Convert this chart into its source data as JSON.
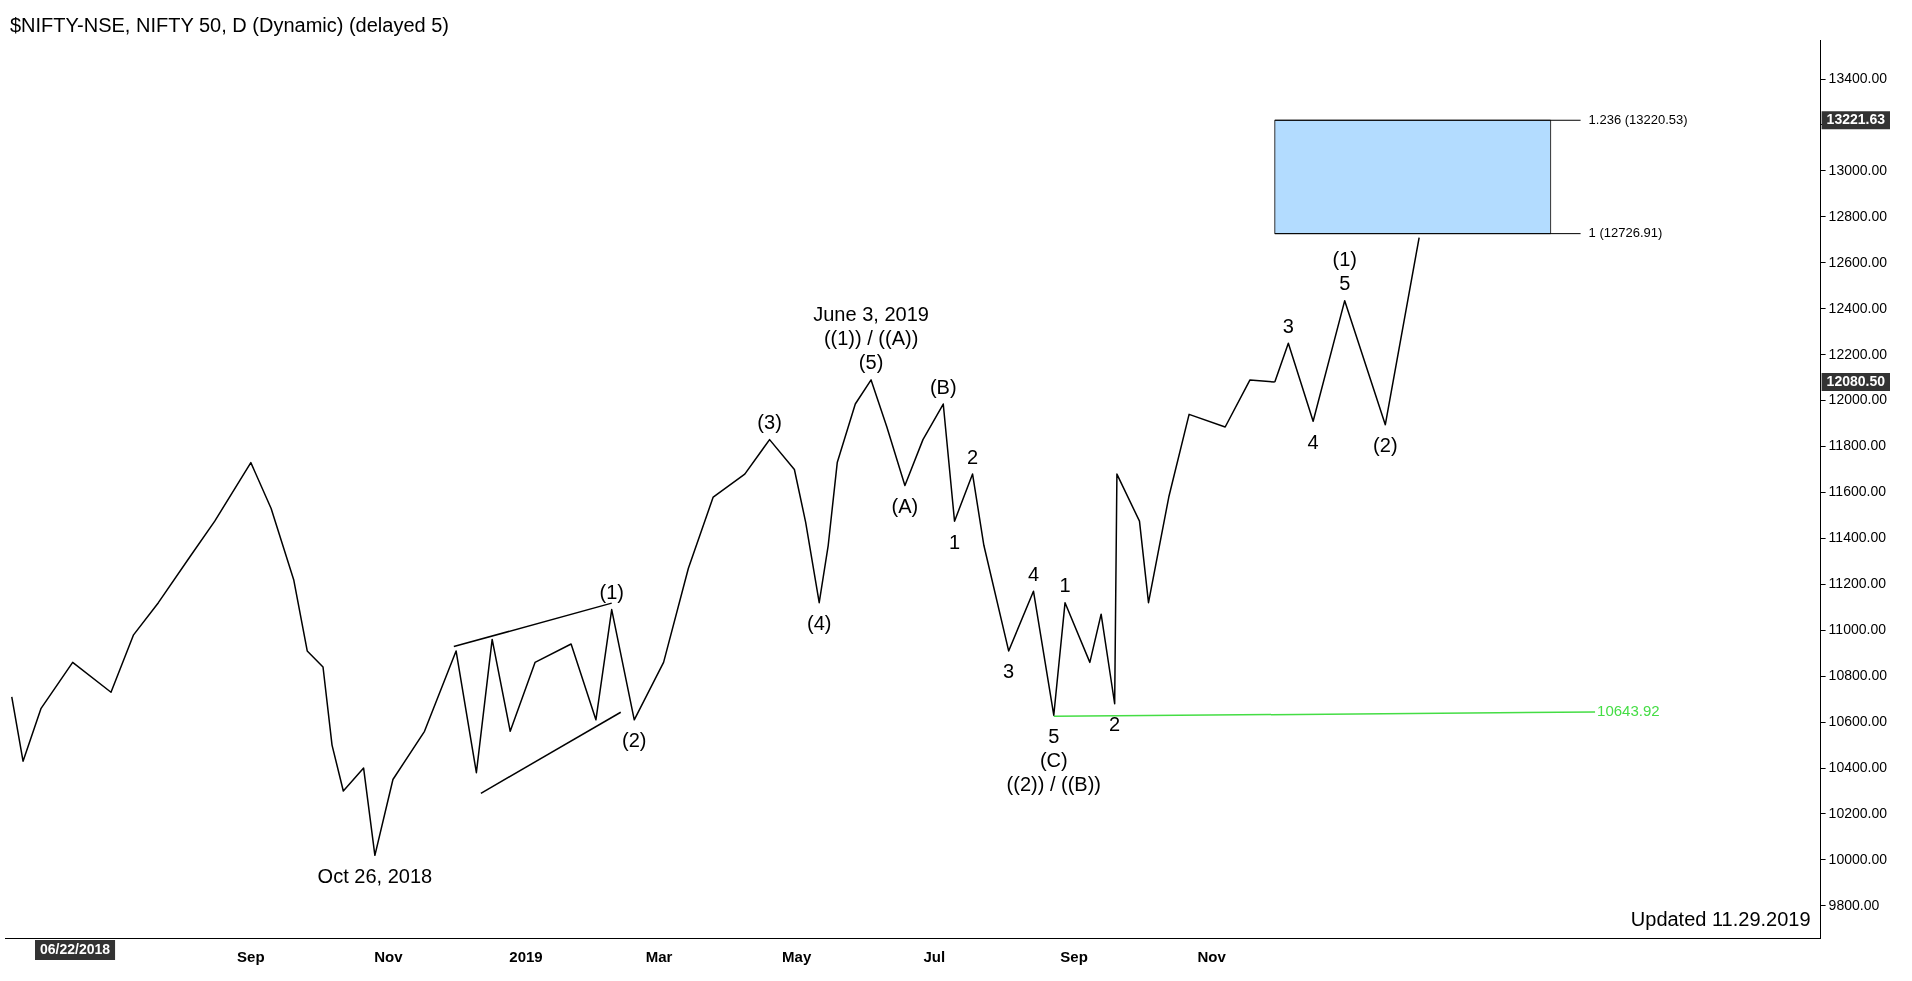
{
  "chart_data": {
    "type": "line",
    "title": "$NIFTY-NSE, NIFTY 50, D (Dynamic) (delayed 5)",
    "xlim": [
      "2018-05-15",
      "2020-07-28"
    ],
    "xticks": [
      {
        "value": "2018-09-01",
        "label": "Sep"
      },
      {
        "value": "2018-11-01",
        "label": "Nov"
      },
      {
        "value": "2019-01-01",
        "label": "2019"
      },
      {
        "value": "2019-03-01",
        "label": "Mar"
      },
      {
        "value": "2019-05-01",
        "label": "May"
      },
      {
        "value": "2019-07-01",
        "label": "Jul"
      },
      {
        "value": "2019-09-01",
        "label": "Sep"
      },
      {
        "value": "2019-11-01",
        "label": "Nov"
      }
    ],
    "ylim": [
      9660,
      13570
    ],
    "yticks": [
      {
        "value": 9800,
        "label": "9800.00"
      },
      {
        "value": 10000,
        "label": "10000.00"
      },
      {
        "value": 10200,
        "label": "10200.00"
      },
      {
        "value": 10400,
        "label": "10400.00"
      },
      {
        "value": 10600,
        "label": "10600.00"
      },
      {
        "value": 10800,
        "label": "10800.00"
      },
      {
        "value": 11000,
        "label": "11000.00"
      },
      {
        "value": 11200,
        "label": "11200.00"
      },
      {
        "value": 11400,
        "label": "11400.00"
      },
      {
        "value": 11600,
        "label": "11600.00"
      },
      {
        "value": 11800,
        "label": "11800.00"
      },
      {
        "value": 12000,
        "label": "12000.00"
      },
      {
        "value": 12200,
        "label": "12200.00"
      },
      {
        "value": 12400,
        "label": "12400.00"
      },
      {
        "value": 12600,
        "label": "12600.00"
      },
      {
        "value": 12800,
        "label": "12800.00"
      },
      {
        "value": 13000,
        "label": "13000.00"
      },
      {
        "value": 13200,
        "label": null
      },
      {
        "value": 13400,
        "label": "13400.00"
      }
    ],
    "grid": false,
    "legend": false,
    "marker": "none",
    "line_style": "solid",
    "series": [
      {
        "color": "#000000",
        "x": [
          "2018-05-18",
          "2018-05-23",
          "2018-05-31",
          "2018-06-14",
          "2018-07-01",
          "2018-07-11",
          "2018-07-22",
          "2018-08-05",
          "2018-08-16",
          "2018-09-01",
          "2018-09-10",
          "2018-09-20",
          "2018-09-26",
          "2018-10-03",
          "2018-10-07",
          "2018-10-12",
          "2018-10-21",
          "2018-10-26",
          "2018-11-03",
          "2018-11-17",
          "2018-12-01",
          "2018-12-10",
          "2018-12-17",
          "2018-12-25",
          "2019-01-05",
          "2019-01-21",
          "2019-02-01",
          "2019-02-08",
          "2019-02-18",
          "2019-03-03",
          "2019-03-14",
          "2019-03-25",
          "2019-04-08",
          "2019-04-19",
          "2019-04-30",
          "2019-05-05",
          "2019-05-11",
          "2019-05-15",
          "2019-05-19",
          "2019-05-27",
          "2019-06-03",
          "2019-06-10",
          "2019-06-18",
          "2019-06-26",
          "2019-07-05",
          "2019-07-10",
          "2019-07-18",
          "2019-07-23",
          "2019-08-03",
          "2019-08-14",
          "2019-08-23",
          "2019-08-28",
          "2019-09-08",
          "2019-09-13",
          "2019-09-19",
          "2019-09-20",
          "2019-09-30",
          "2019-10-04",
          "2019-10-13",
          "2019-10-22",
          "2019-11-07",
          "2019-11-18",
          "2019-11-29"
        ],
        "values": [
          10710,
          10430,
          10660,
          10860,
          10730,
          10980,
          11120,
          11320,
          11475,
          11730,
          11530,
          11220,
          10910,
          10840,
          10500,
          10300,
          10400,
          10020,
          10350,
          10560,
          10910,
          10380,
          10960,
          10560,
          10860,
          10940,
          10610,
          11090,
          10610,
          10860,
          11270,
          11580,
          11680,
          11830,
          11700,
          11470,
          11120,
          11370,
          11730,
          11985,
          12090,
          11885,
          11630,
          11830,
          11985,
          11475,
          11680,
          11370,
          10910,
          11170,
          10630,
          11120,
          10860,
          11070,
          10680,
          11680,
          11475,
          11120,
          11580,
          11940,
          11885,
          12090,
          12080.5
        ]
      },
      {
        "color": "#000000",
        "x": [
          "2019-11-29",
          "2019-12-05",
          "2019-12-16",
          "2019-12-30",
          "2020-01-17",
          "2020-02-01"
        ],
        "values": [
          12080.5,
          12250,
          11910,
          12435,
          11895,
          12710
        ]
      },
      {
        "color": "#000000",
        "x": [
          "2018-11-30",
          "2019-02-08"
        ],
        "values": [
          10929,
          11118
        ]
      },
      {
        "color": "#000000",
        "x": [
          "2018-12-12",
          "2019-02-12"
        ],
        "values": [
          10290,
          10643
        ]
      },
      {
        "name": "10643.92",
        "color": "#44dd44",
        "x": [
          "2019-08-23",
          "2020-04-19"
        ],
        "values": [
          10625,
          10643.92
        ]
      }
    ],
    "bands": [
      {
        "axis": "y",
        "from": 12726.91,
        "to": 13220.53,
        "color": "#b3dcff"
      }
    ],
    "ref_lines": [
      {
        "axis": "y",
        "value": 13220.53,
        "label": "1.236 (13220.53)",
        "color": "#000000"
      },
      {
        "axis": "y",
        "value": 12726.91,
        "label": "1 (12726.91)",
        "color": "#000000"
      }
    ],
    "annotations": [
      {
        "text": "1",
        "x": "2019-07-10",
        "y": 11475
      },
      {
        "text": "2",
        "x": "2019-07-18",
        "y": 11680
      },
      {
        "text": "3",
        "x": "2019-08-03",
        "y": 10910
      },
      {
        "text": "4",
        "x": "2019-08-14",
        "y": 11170
      },
      {
        "text": "5",
        "x": "2019-08-23",
        "y": 10630
      },
      {
        "text": "1",
        "x": "2019-08-28",
        "y": 11120
      },
      {
        "text": "2",
        "x": "2019-09-19",
        "y": 10680
      },
      {
        "text": "3",
        "x": "2019-12-05",
        "y": 12250
      },
      {
        "text": "4",
        "x": "2019-12-16",
        "y": 11910
      },
      {
        "text": "5",
        "x": "2019-12-30",
        "y": 12435
      },
      {
        "text": "(1)",
        "x": "2019-02-08",
        "y": 11090
      },
      {
        "text": "(2)",
        "x": "2019-02-18",
        "y": 10610
      },
      {
        "text": "(3)",
        "x": "2019-04-19",
        "y": 11830
      },
      {
        "text": "(4)",
        "x": "2019-05-11",
        "y": 11120
      },
      {
        "text": "(5)",
        "x": "2019-06-03",
        "y": 12090
      },
      {
        "text": "(A)",
        "x": "2019-06-18",
        "y": 11630
      },
      {
        "text": "(B)",
        "x": "2019-07-05",
        "y": 11985
      },
      {
        "text": "(C)",
        "x": "2019-08-23",
        "y": 10630
      },
      {
        "text": "(1)",
        "x": "2019-12-30",
        "y": 12435
      },
      {
        "text": "(2)",
        "x": "2020-01-17",
        "y": 11895
      },
      {
        "text": "Oct 26, 2018",
        "x": "2018-10-26",
        "y": 10020
      },
      {
        "text": "((1)) / ((A))",
        "x": "2019-06-03",
        "y": 12090
      },
      {
        "text": "June 3, 2019",
        "x": "2019-06-03",
        "y": 12090
      },
      {
        "text": "((2)) / ((B))",
        "x": "2019-08-23",
        "y": 10630
      },
      "06/22/2018",
      "13221.63",
      "12080.50",
      "Updated 11.29.2019"
    ]
  }
}
